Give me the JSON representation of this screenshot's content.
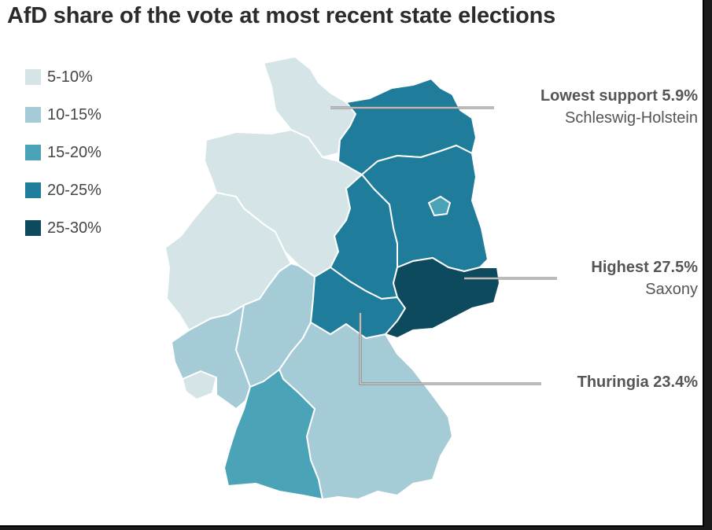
{
  "title": "AfD share of the vote at most recent state elections",
  "legend": [
    {
      "label": "5-10%",
      "color": "#d5e4e7"
    },
    {
      "label": "10-15%",
      "color": "#a4cbd6"
    },
    {
      "label": "15-20%",
      "color": "#4ba3b7"
    },
    {
      "label": "20-25%",
      "color": "#1f7c9b"
    },
    {
      "label": "25-30%",
      "color": "#0d4a5e"
    }
  ],
  "callouts": {
    "lowest": {
      "headline": "Lowest support 5.9%",
      "state": "Schleswig-Holstein"
    },
    "highest": {
      "headline": "Highest 27.5%",
      "state": "Saxony"
    },
    "thuringia": {
      "headline": "Thuringia 23.4%"
    }
  },
  "map_data": {
    "states": [
      {
        "name": "Schleswig-Holstein",
        "band": "5-10%",
        "value": 5.9
      },
      {
        "name": "Saxony",
        "band": "25-30%",
        "value": 27.5
      },
      {
        "name": "Thuringia",
        "band": "20-25%",
        "value": 23.4
      }
    ]
  }
}
